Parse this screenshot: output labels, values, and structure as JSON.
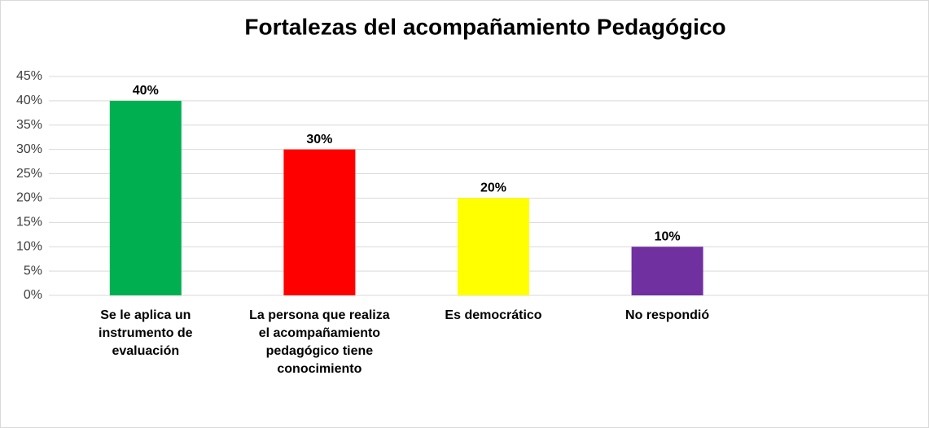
{
  "chart_data": {
    "type": "bar",
    "title": "Fortalezas del acompañamiento Pedagógico",
    "categories": [
      "Se le aplica un instrumento de evaluación",
      "La persona que realiza el acompañamiento pedagógico tiene conocimiento",
      "Es democrático",
      "No respondió"
    ],
    "values": [
      40,
      30,
      20,
      10
    ],
    "value_labels": [
      "40%",
      "30%",
      "20%",
      "10%"
    ],
    "colors": [
      "#00b050",
      "#ff0000",
      "#ffff00",
      "#7030a0"
    ],
    "ylim": [
      0,
      45
    ],
    "yticks": [
      {
        "value": 0,
        "label": "0%"
      },
      {
        "value": 5,
        "label": "5%"
      },
      {
        "value": 10,
        "label": "10%"
      },
      {
        "value": 15,
        "label": "15%"
      },
      {
        "value": 20,
        "label": "20%"
      },
      {
        "value": 25,
        "label": "25%"
      },
      {
        "value": 30,
        "label": "30%"
      },
      {
        "value": 35,
        "label": "35%"
      },
      {
        "value": 40,
        "label": "40%"
      },
      {
        "value": 45,
        "label": "45%"
      }
    ],
    "grid": true
  }
}
